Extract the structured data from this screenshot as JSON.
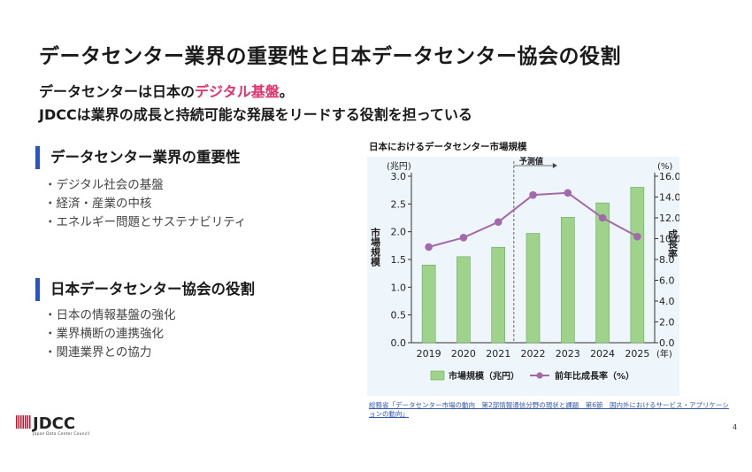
{
  "slide": {
    "title": "データセンター業界の重要性と日本データセンター協会の役割",
    "subtitle1_pre": "データセンターは日本の",
    "subtitle1_highlight": "デジタル基盤",
    "subtitle1_post": "。",
    "subtitle2": "JDCCは業界の成長と持続可能な発展をリードする役割を担っている",
    "page_number": "4"
  },
  "sections": [
    {
      "heading": "データセンター業界の重要性",
      "bullets": [
        "・デジタル社会の基盤",
        "・経済・産業の中核",
        "・エネルギー問題とサステナビリティ"
      ]
    },
    {
      "heading": "日本データセンター協会の役割",
      "bullets": [
        "・日本の情報基盤の強化",
        "・業界横断の連携強化",
        "・関連業界との協力"
      ]
    }
  ],
  "logo": {
    "text": "JDCC",
    "subtext": "Japan Data Center Council"
  },
  "source_note": "総務省「データセンター市場の動向　第2部情報通信分野の現状と課題　第6節　国内外におけるサービス・アプリケーションの動向」",
  "colors": {
    "accent_bar": "#2a55c6",
    "highlight": "#e0336b",
    "bar_fill": "#9fd38c",
    "line": "#a26aab",
    "chart_bg": "#eef5fb"
  },
  "chart_data": {
    "type": "bar+line",
    "title": "日本におけるデータセンター市場規模",
    "categories": [
      "2019",
      "2020",
      "2021",
      "2022",
      "2023",
      "2024",
      "2025"
    ],
    "x_unit": "(年)",
    "series": [
      {
        "name": "市場規模（兆円）",
        "type": "bar",
        "axis": "left",
        "values": [
          1.4,
          1.55,
          1.72,
          1.97,
          2.26,
          2.52,
          2.8
        ]
      },
      {
        "name": "前年比成長率（%）",
        "type": "line",
        "axis": "right",
        "values": [
          9.2,
          10.1,
          11.6,
          14.2,
          14.4,
          12.0,
          10.2
        ]
      }
    ],
    "y_left": {
      "label": "市場規模",
      "unit": "(兆円)",
      "ylim": [
        0,
        3.0
      ],
      "ticks": [
        "0.0",
        "0.5",
        "1.0",
        "1.5",
        "2.0",
        "2.5",
        "3.0"
      ]
    },
    "y_right": {
      "label": "成長率",
      "unit": "(%)",
      "ylim": [
        0,
        16
      ],
      "ticks": [
        "0.0",
        "2.0",
        "4.0",
        "6.0",
        "8.0",
        "10.0",
        "12.0",
        "14.0",
        "16.0"
      ]
    },
    "annotation": "予測値",
    "forecast_start": "2022",
    "grid": false,
    "legend_position": "bottom"
  }
}
